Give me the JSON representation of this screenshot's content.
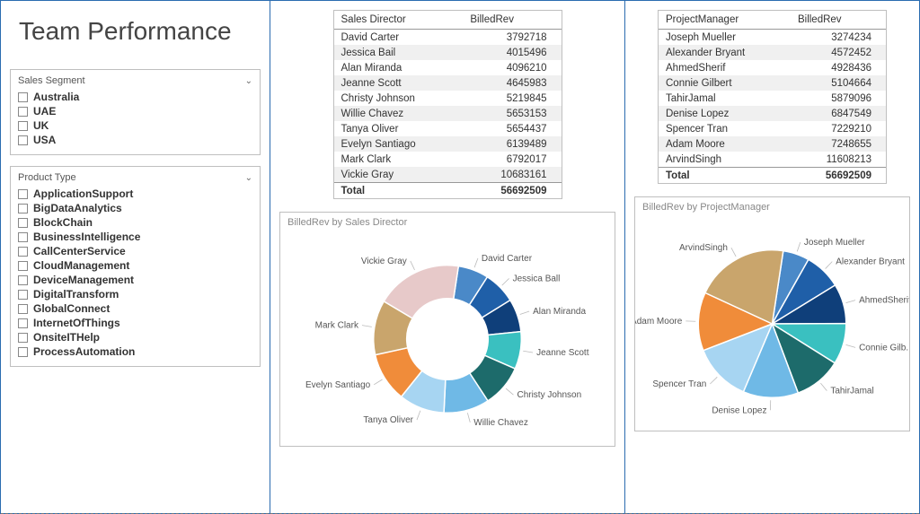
{
  "title": "Team Performance",
  "slicer_segment": {
    "header": "Sales Segment",
    "items": [
      "Australia",
      "UAE",
      "UK",
      "USA"
    ]
  },
  "slicer_product": {
    "header": "Product Type",
    "items": [
      "ApplicationSupport",
      "BigDataAnalytics",
      "BlockChain",
      "BusinessIntelligence",
      "CallCenterService",
      "CloudManagement",
      "DeviceManagement",
      "DigitalTransform",
      "GlobalConnect",
      "InternetOfThings",
      "OnsiteITHelp",
      "ProcessAutomation"
    ]
  },
  "table_director": {
    "col1": "Sales Director",
    "col2": "BilledRev",
    "rows": [
      {
        "name": "David Carter",
        "val": "3792718"
      },
      {
        "name": "Jessica Bail",
        "val": "4015496"
      },
      {
        "name": "Alan Miranda",
        "val": "4096210"
      },
      {
        "name": "Jeanne Scott",
        "val": "4645983"
      },
      {
        "name": "Christy Johnson",
        "val": "5219845"
      },
      {
        "name": "Willie Chavez",
        "val": "5653153"
      },
      {
        "name": "Tanya Oliver",
        "val": "5654437"
      },
      {
        "name": "Evelyn Santiago",
        "val": "6139489"
      },
      {
        "name": "Mark Clark",
        "val": "6792017"
      },
      {
        "name": "Vickie Gray",
        "val": "10683161"
      }
    ],
    "total_label": "Total",
    "total_val": "56692509"
  },
  "table_manager": {
    "col1": "ProjectManager",
    "col2": "BilledRev",
    "rows": [
      {
        "name": "Joseph Mueller",
        "val": "3274234"
      },
      {
        "name": "Alexander Bryant",
        "val": "4572452"
      },
      {
        "name": "AhmedSherif",
        "val": "4928436"
      },
      {
        "name": "Connie Gilbert",
        "val": "5104664"
      },
      {
        "name": "TahirJamal",
        "val": "5879096"
      },
      {
        "name": "Denise Lopez",
        "val": "6847549"
      },
      {
        "name": "Spencer Tran",
        "val": "7229210"
      },
      {
        "name": "Adam Moore",
        "val": "7248655"
      },
      {
        "name": "ArvindSingh",
        "val": "11608213"
      }
    ],
    "total_label": "Total",
    "total_val": "56692509"
  },
  "chart_director": {
    "title": "BilledRev by Sales Director",
    "type": "donut",
    "inner_ratio": 0.55,
    "background": "#ffffff",
    "slices": [
      {
        "label": "David Carter",
        "value": 3792718,
        "color": "#4a89c8"
      },
      {
        "label": "Jessica Ball",
        "value": 4015496,
        "color": "#1f5fa8"
      },
      {
        "label": "Alan Miranda",
        "value": 4096210,
        "color": "#0f3f7a"
      },
      {
        "label": "Jeanne Scott",
        "value": 4645983,
        "color": "#3ac0c0"
      },
      {
        "label": "Christy Johnson",
        "value": 5219845,
        "color": "#1d6b6b"
      },
      {
        "label": "Willie Chavez",
        "value": 5653153,
        "color": "#6fb9e6"
      },
      {
        "label": "Tanya Oliver",
        "value": 5654437,
        "color": "#a7d5f2"
      },
      {
        "label": "Evelyn Santiago",
        "value": 6139489,
        "color": "#f08c3a"
      },
      {
        "label": "Mark Clark",
        "value": 6792017,
        "color": "#c9a56c"
      },
      {
        "label": "Vickie Gray",
        "value": 10683161,
        "color": "#e7c9c9"
      }
    ]
  },
  "chart_manager": {
    "title": "BilledRev by ProjectManager",
    "type": "pie",
    "inner_ratio": 0,
    "background": "#ffffff",
    "slices": [
      {
        "label": "Joseph Mueller",
        "value": 3274234,
        "color": "#4a89c8"
      },
      {
        "label": "Alexander Bryant",
        "value": 4572452,
        "color": "#1f5fa8"
      },
      {
        "label": "AhmedSherif",
        "value": 4928436,
        "color": "#0f3f7a"
      },
      {
        "label": "Connie Gilb...",
        "value": 5104664,
        "color": "#3ac0c0"
      },
      {
        "label": "TahirJamal",
        "value": 5879096,
        "color": "#1d6b6b"
      },
      {
        "label": "Denise Lopez",
        "value": 6847549,
        "color": "#6fb9e6"
      },
      {
        "label": "Spencer Tran",
        "value": 7229210,
        "color": "#a7d5f2"
      },
      {
        "label": "Adam Moore",
        "value": 7248655,
        "color": "#f08c3a"
      },
      {
        "label": "ArvindSingh",
        "value": 11608213,
        "color": "#c9a56c"
      }
    ]
  }
}
